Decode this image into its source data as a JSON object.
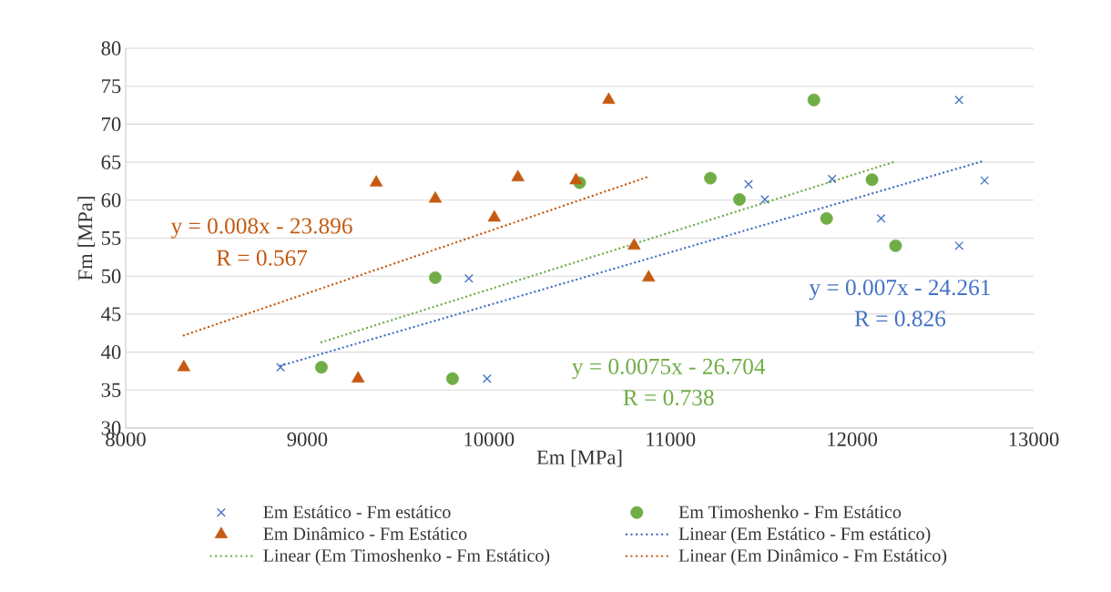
{
  "chart_data": {
    "type": "scatter",
    "xlabel": "Em [MPa]",
    "ylabel": "Fm [MPa]",
    "xlim": [
      8000,
      13000
    ],
    "ylim": [
      30,
      80
    ],
    "xticks": [
      8000,
      9000,
      10000,
      11000,
      12000,
      13000
    ],
    "yticks": [
      30,
      35,
      40,
      45,
      50,
      55,
      60,
      65,
      70,
      75,
      80
    ],
    "grid": "y",
    "legend": "bottom",
    "series": [
      {
        "name": "Em Estático - Fm estático",
        "marker": "cross",
        "color": "#4472c4",
        "x": [
          8853,
          9890,
          9990,
          11430,
          11520,
          11890,
          12160,
          12590,
          12590,
          12730
        ],
        "values": [
          38.0,
          49.7,
          36.5,
          62.1,
          60.1,
          62.8,
          57.6,
          54.0,
          73.2,
          62.6
        ]
      },
      {
        "name": "Em Timoshenko - Fm Estático",
        "marker": "circle",
        "color": "#70ad47",
        "x": [
          9078,
          9705,
          9800,
          10500,
          11220,
          11380,
          11790,
          11860,
          12110,
          12240
        ],
        "values": [
          38.0,
          49.8,
          36.5,
          62.3,
          62.9,
          60.1,
          73.2,
          57.6,
          62.7,
          54.0
        ]
      },
      {
        "name": "Em Dinâmico - Fm Estático",
        "marker": "triangle",
        "color": "#c55a11",
        "x": [
          8320,
          9280,
          9380,
          9705,
          10030,
          10160,
          10480,
          10660,
          10800,
          10880
        ],
        "values": [
          38.0,
          36.5,
          62.3,
          60.2,
          57.7,
          63.0,
          62.6,
          73.2,
          54.0,
          49.8
        ]
      },
      {
        "name": "Linear (Em Estático - Fm estático)",
        "type": "line",
        "line_style": "dotted",
        "marker": "none",
        "color": "#4472c4",
        "x": [
          8853,
          12730
        ],
        "values": [
          38.2,
          65.2
        ]
      },
      {
        "name": "Linear (Em Timoshenko - Fm Estático)",
        "type": "line",
        "line_style": "dotted",
        "marker": "none",
        "color": "#70ad47",
        "x": [
          9078,
          12240
        ],
        "values": [
          41.3,
          65.1
        ]
      },
      {
        "name": "Linear (Em Dinâmico - Fm Estático)",
        "type": "line",
        "line_style": "dotted",
        "marker": "none",
        "color": "#c55a11",
        "x": [
          8320,
          10880
        ],
        "values": [
          42.2,
          63.1
        ]
      }
    ],
    "annotations": [
      "y = 0.007x - 24.261",
      "R = 0.826",
      "y = 0.0075x - 26.704",
      "R = 0.738",
      "y = 0.008x - 23.896",
      "R = 0.567"
    ]
  }
}
